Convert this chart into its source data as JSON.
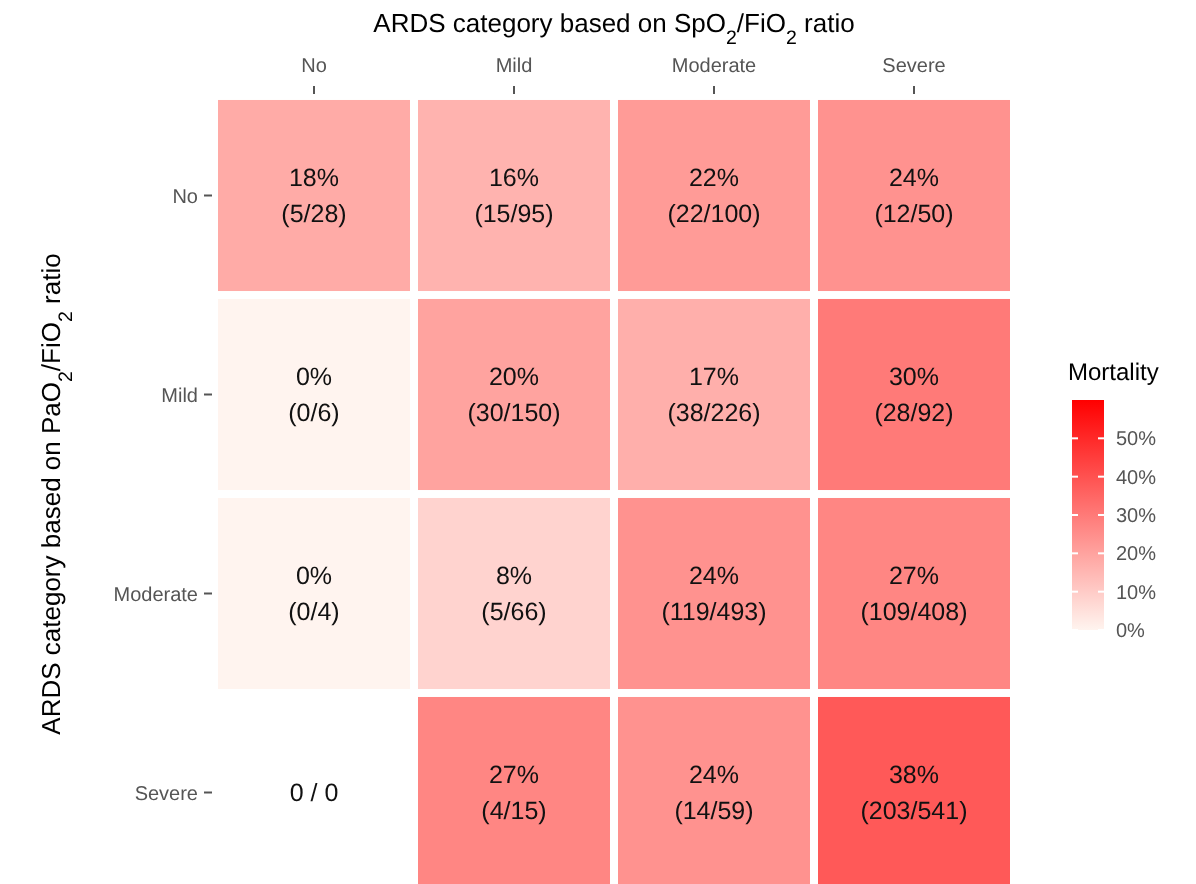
{
  "chart_data": {
    "type": "heatmap",
    "xlabel": "ARDS category based on SpO$_{2}$/FiO$_{2}$ ratio",
    "ylabel": "ARDS category based on PaO$_{2}$/FiO$_{2}$ ratio",
    "legend_title": "Mortality",
    "categories": [
      "No",
      "Mild",
      "Moderate",
      "Severe"
    ],
    "y_categories": [
      "No",
      "Mild",
      "Moderate",
      "Severe"
    ],
    "cells": [
      [
        18,
        16,
        22,
        24
      ],
      [
        0,
        20,
        17,
        30
      ],
      [
        0,
        8,
        24,
        27
      ],
      [
        null,
        27,
        24,
        38
      ]
    ],
    "cell_labels": [
      [
        "18%\n(5/28)",
        "16%\n(15/95)",
        "22%\n(22/100)",
        "24%\n(12/50)"
      ],
      [
        "0%\n(0/6)",
        "20%\n(30/150)",
        "17%\n(38/226)",
        "30%\n(28/92)"
      ],
      [
        "0%\n(0/4)",
        "8%\n(5/66)",
        "24%\n(119/493)",
        "27%\n(109/408)"
      ],
      [
        "0 / 0",
        "27%\n(4/15)",
        "24%\n(14/59)",
        "38%\n(203/541)"
      ]
    ],
    "clim": [
      0,
      60
    ],
    "cticks": [
      {
        "value": 0,
        "label": "0%"
      },
      {
        "value": 10,
        "label": "10%"
      },
      {
        "value": 20,
        "label": "20%"
      },
      {
        "value": 30,
        "label": "30%"
      },
      {
        "value": 40,
        "label": "40%"
      },
      {
        "value": 50,
        "label": "50%"
      }
    ]
  }
}
